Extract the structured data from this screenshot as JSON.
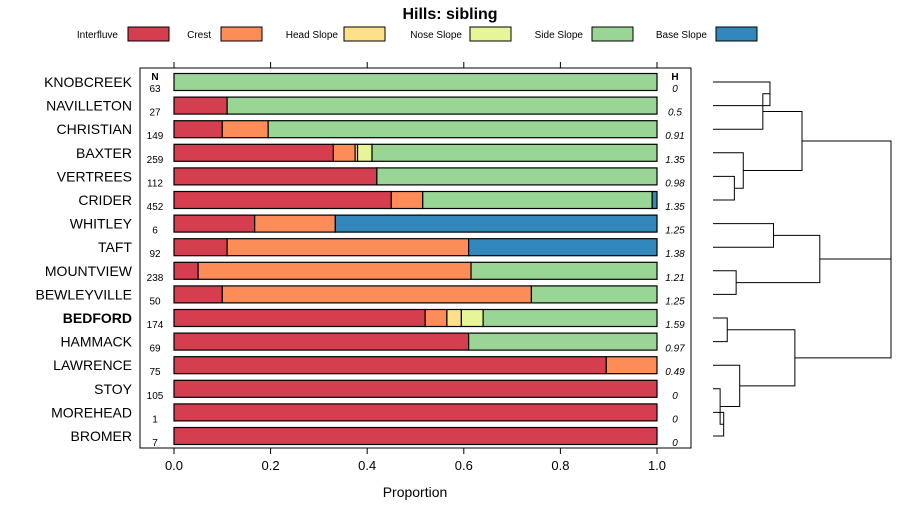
{
  "chart_data": {
    "type": "bar",
    "orientation": "horizontal",
    "stacked": true,
    "title": "Hills: sibling",
    "xlabel": "Proportion",
    "xlim": [
      0,
      1
    ],
    "xticks": [
      "0.0",
      "0.2",
      "0.4",
      "0.6",
      "0.8",
      "1.0"
    ],
    "n_header": "N",
    "h_header": "H",
    "highlighted": "BEDFORD",
    "legend": [
      {
        "name": "Interfluve",
        "color": "#d53e4f"
      },
      {
        "name": "Crest",
        "color": "#fc8d59"
      },
      {
        "name": "Head Slope",
        "color": "#fee08b"
      },
      {
        "name": "Nose Slope",
        "color": "#e6f598"
      },
      {
        "name": "Side Slope",
        "color": "#99d594"
      },
      {
        "name": "Base Slope",
        "color": "#3288bd"
      }
    ],
    "rows": [
      {
        "label": "KNOBCREEK",
        "n": "63",
        "h": "0",
        "values": [
          0,
          0,
          0,
          0,
          1.0,
          0
        ]
      },
      {
        "label": "NAVILLETON",
        "n": "27",
        "h": "0.5",
        "values": [
          0.11,
          0,
          0,
          0,
          0.89,
          0
        ]
      },
      {
        "label": "CHRISTIAN",
        "n": "149",
        "h": "0.91",
        "values": [
          0.1,
          0.095,
          0,
          0,
          0.805,
          0
        ]
      },
      {
        "label": "BAXTER",
        "n": "259",
        "h": "1.35",
        "values": [
          0.33,
          0.045,
          0.005,
          0.03,
          0.59,
          0
        ]
      },
      {
        "label": "VERTREES",
        "n": "112",
        "h": "0.98",
        "values": [
          0.42,
          0,
          0,
          0,
          0.58,
          0
        ]
      },
      {
        "label": "CRIDER",
        "n": "452",
        "h": "1.35",
        "values": [
          0.45,
          0.065,
          0,
          0,
          0.475,
          0.01
        ]
      },
      {
        "label": "WHITLEY",
        "n": "6",
        "h": "1.25",
        "values": [
          0.167,
          0.167,
          0,
          0,
          0,
          0.666
        ]
      },
      {
        "label": "TAFT",
        "n": "92",
        "h": "1.38",
        "values": [
          0.11,
          0.5,
          0,
          0,
          0,
          0.39
        ]
      },
      {
        "label": "MOUNTVIEW",
        "n": "238",
        "h": "1.21",
        "values": [
          0.05,
          0.565,
          0,
          0,
          0.385,
          0
        ]
      },
      {
        "label": "BEWLEYVILLE",
        "n": "50",
        "h": "1.25",
        "values": [
          0.1,
          0.64,
          0,
          0,
          0.26,
          0
        ]
      },
      {
        "label": "BEDFORD",
        "n": "174",
        "h": "1.59",
        "values": [
          0.52,
          0.045,
          0.03,
          0.045,
          0.36,
          0
        ]
      },
      {
        "label": "HAMMACK",
        "n": "69",
        "h": "0.97",
        "values": [
          0.61,
          0,
          0,
          0,
          0.39,
          0
        ]
      },
      {
        "label": "LAWRENCE",
        "n": "75",
        "h": "0.49",
        "values": [
          0.895,
          0.105,
          0,
          0,
          0,
          0
        ]
      },
      {
        "label": "STOY",
        "n": "105",
        "h": "0",
        "values": [
          1.0,
          0,
          0,
          0,
          0,
          0
        ]
      },
      {
        "label": "MOREHEAD",
        "n": "1",
        "h": "0",
        "values": [
          1.0,
          0,
          0,
          0,
          0,
          0
        ]
      },
      {
        "label": "BROMER",
        "n": "7",
        "h": "0",
        "values": [
          1.0,
          0,
          0,
          0,
          0,
          0
        ]
      }
    ],
    "dendrogram": {
      "leaves": [
        "KNOBCREEK",
        "NAVILLETON",
        "CHRISTIAN",
        "BAXTER",
        "VERTREES",
        "CRIDER",
        "WHITLEY",
        "TAFT",
        "MOUNTVIEW",
        "BEWLEYVILLE",
        "BEDFORD",
        "HAMMACK",
        "LAWRENCE",
        "STOY",
        "MOREHEAD",
        "BROMER"
      ],
      "merges": [
        {
          "a": "KNOBCREEK",
          "b": "NAVILLETON",
          "height": 0.32
        },
        {
          "a": "m1",
          "b": "CHRISTIAN",
          "height": 0.28
        },
        {
          "a": "VERTREES",
          "b": "CRIDER",
          "height": 0.12
        },
        {
          "a": "BAXTER",
          "b": "m3",
          "height": 0.17
        },
        {
          "a": "m2",
          "b": "m4",
          "height": 0.5
        },
        {
          "a": "WHITLEY",
          "b": "TAFT",
          "height": 0.34
        },
        {
          "a": "MOUNTVIEW",
          "b": "BEWLEYVILLE",
          "height": 0.13
        },
        {
          "a": "m6",
          "b": "m7",
          "height": 0.6
        },
        {
          "a": "BEDFORD",
          "b": "HAMMACK",
          "height": 0.08
        },
        {
          "a": "MOREHEAD",
          "b": "BROMER",
          "height": 0.06
        },
        {
          "a": "STOY",
          "b": "m10",
          "height": 0.04
        },
        {
          "a": "LAWRENCE",
          "b": "m11",
          "height": 0.15
        },
        {
          "a": "m9",
          "b": "m12",
          "height": 0.46
        },
        {
          "a": "m8",
          "b": "m13",
          "height": 1.0
        },
        {
          "a": "m5",
          "b": "m14",
          "height": 1.0
        }
      ]
    }
  }
}
